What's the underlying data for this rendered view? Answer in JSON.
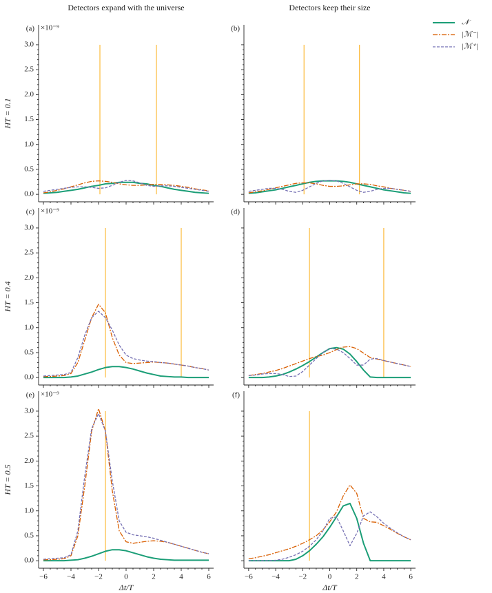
{
  "chart_data": [
    {
      "type": "line",
      "panel_label": "(a)",
      "title": "Detectors expand with the universe",
      "ylabel": "HT = 0.1",
      "y_offset_label": "×10⁻⁹",
      "x": [
        -6,
        -5.5,
        -5,
        -4.5,
        -4,
        -3.5,
        -3,
        -2.5,
        -2,
        -1.5,
        -1,
        -0.5,
        0,
        0.5,
        1,
        1.5,
        2,
        2.5,
        3,
        3.5,
        4,
        4.5,
        5,
        5.5,
        6
      ],
      "series": [
        {
          "name": "𝒩",
          "color": "#1b9e77",
          "values": [
            0.02,
            0.03,
            0.04,
            0.06,
            0.08,
            0.1,
            0.13,
            0.16,
            0.18,
            0.21,
            0.22,
            0.24,
            0.24,
            0.24,
            0.22,
            0.21,
            0.18,
            0.16,
            0.13,
            0.1,
            0.08,
            0.06,
            0.04,
            0.03,
            0.02
          ]
        },
        {
          "name": "|ℳ⁻|",
          "color": "#d95f02",
          "values": [
            0.03,
            0.05,
            0.08,
            0.11,
            0.15,
            0.19,
            0.23,
            0.26,
            0.27,
            0.26,
            0.24,
            0.21,
            0.19,
            0.18,
            0.18,
            0.19,
            0.2,
            0.2,
            0.19,
            0.18,
            0.16,
            0.14,
            0.11,
            0.09,
            0.07
          ]
        },
        {
          "name": "|ℳ⁺|",
          "color": "#7570b3",
          "values": [
            0.06,
            0.08,
            0.1,
            0.12,
            0.14,
            0.15,
            0.15,
            0.14,
            0.12,
            0.13,
            0.18,
            0.24,
            0.28,
            0.27,
            0.23,
            0.18,
            0.16,
            0.17,
            0.17,
            0.16,
            0.14,
            0.12,
            0.1,
            0.08,
            0.06
          ]
        }
      ],
      "vlines": [
        -1.9,
        2.2
      ],
      "vline_color": "#fcbf49",
      "xlim": [
        -6.35,
        6.35
      ],
      "ylim": [
        -0.15,
        3.4
      ],
      "xticks": [
        -6,
        -4,
        -2,
        0,
        2,
        4,
        6
      ],
      "yticks": [
        {
          "value": 0,
          "label": "0.0"
        },
        {
          "value": 0.5,
          "label": "0.5"
        },
        {
          "value": 1,
          "label": "1.0"
        },
        {
          "value": 1.5,
          "label": "1.5"
        },
        {
          "value": 2,
          "label": "2.0"
        },
        {
          "value": 2.5,
          "label": "2.5"
        },
        {
          "value": 3,
          "label": "3.0"
        }
      ]
    },
    {
      "type": "line",
      "panel_label": "(b)",
      "title": "Detectors keep their size",
      "x": [
        -6,
        -5.5,
        -5,
        -4.5,
        -4,
        -3.5,
        -3,
        -2.5,
        -2,
        -1.5,
        -1,
        -0.5,
        0,
        0.5,
        1,
        1.5,
        2,
        2.5,
        3,
        3.5,
        4,
        4.5,
        5,
        5.5,
        6
      ],
      "series": [
        {
          "values": [
            0.02,
            0.03,
            0.05,
            0.07,
            0.09,
            0.12,
            0.15,
            0.18,
            0.21,
            0.24,
            0.26,
            0.27,
            0.27,
            0.27,
            0.26,
            0.24,
            0.21,
            0.18,
            0.15,
            0.12,
            0.09,
            0.07,
            0.05,
            0.03,
            0.02
          ]
        },
        {
          "values": [
            0.03,
            0.05,
            0.07,
            0.1,
            0.13,
            0.16,
            0.19,
            0.22,
            0.23,
            0.23,
            0.21,
            0.18,
            0.16,
            0.16,
            0.17,
            0.19,
            0.21,
            0.21,
            0.2,
            0.17,
            0.15,
            0.12,
            0.1,
            0.08,
            0.06
          ]
        },
        {
          "values": [
            0.06,
            0.08,
            0.1,
            0.12,
            0.12,
            0.1,
            0.06,
            0.04,
            0.08,
            0.15,
            0.22,
            0.27,
            0.28,
            0.27,
            0.22,
            0.15,
            0.08,
            0.04,
            0.06,
            0.1,
            0.12,
            0.12,
            0.1,
            0.08,
            0.06
          ]
        }
      ],
      "vlines": [
        -1.9,
        2.2
      ],
      "vline_color": "#fcbf49",
      "xlim": [
        -6.35,
        6.35
      ],
      "ylim": [
        -0.15,
        3.4
      ],
      "xticks": [
        -6,
        -4,
        -2,
        0,
        2,
        4,
        6
      ],
      "yticks": [
        0,
        0.5,
        1,
        1.5,
        2,
        2.5,
        3
      ]
    },
    {
      "type": "line",
      "panel_label": "(c)",
      "ylabel": "HT = 0.4",
      "y_offset_label": "×10⁻⁹",
      "x": [
        -6,
        -5.5,
        -5,
        -4.5,
        -4,
        -3.5,
        -3,
        -2.5,
        -2,
        -1.5,
        -1,
        -0.5,
        0,
        0.5,
        1,
        1.5,
        2,
        2.5,
        3,
        3.5,
        4,
        4.5,
        5,
        5.5,
        6
      ],
      "series": [
        {
          "values": [
            0,
            0,
            0,
            0,
            0.01,
            0.03,
            0.07,
            0.11,
            0.16,
            0.2,
            0.22,
            0.22,
            0.2,
            0.17,
            0.13,
            0.09,
            0.06,
            0.03,
            0.02,
            0.01,
            0.01,
            0,
            0,
            0,
            0
          ]
        },
        {
          "values": [
            0.02,
            0.02,
            0.03,
            0.04,
            0.08,
            0.3,
            0.75,
            1.2,
            1.47,
            1.3,
            0.8,
            0.45,
            0.3,
            0.28,
            0.29,
            0.3,
            0.31,
            0.3,
            0.29,
            0.27,
            0.25,
            0.23,
            0.2,
            0.18,
            0.15
          ]
        },
        {
          "values": [
            0.03,
            0.04,
            0.05,
            0.06,
            0.1,
            0.4,
            0.85,
            1.2,
            1.33,
            1.2,
            0.95,
            0.65,
            0.45,
            0.38,
            0.35,
            0.33,
            0.32,
            0.3,
            0.29,
            0.27,
            0.25,
            0.23,
            0.2,
            0.18,
            0.15
          ]
        }
      ],
      "vlines": [
        -1.5,
        4
      ],
      "vline_color": "#fcbf49",
      "xlim": [
        -6.35,
        6.35
      ],
      "ylim": [
        -0.15,
        3.4
      ],
      "xticks": [
        -6,
        -4,
        -2,
        0,
        2,
        4,
        6
      ],
      "yticks": [
        {
          "value": 0,
          "label": "0.0"
        },
        {
          "value": 0.5,
          "label": "0.5"
        },
        {
          "value": 1,
          "label": "1.0"
        },
        {
          "value": 1.5,
          "label": "1.5"
        },
        {
          "value": 2,
          "label": "2.0"
        },
        {
          "value": 2.5,
          "label": "2.5"
        },
        {
          "value": 3,
          "label": "3.0"
        }
      ]
    },
    {
      "type": "line",
      "panel_label": "(d)",
      "x": [
        -6,
        -5.5,
        -5,
        -4.5,
        -4,
        -3.5,
        -3,
        -2.5,
        -2,
        -1.5,
        -1,
        -0.5,
        0,
        0.5,
        1,
        1.5,
        2,
        2.5,
        3,
        3.5,
        4,
        4.5,
        5,
        5.5,
        6
      ],
      "series": [
        {
          "values": [
            0,
            0,
            0,
            0.01,
            0.03,
            0.06,
            0.11,
            0.17,
            0.24,
            0.32,
            0.41,
            0.5,
            0.58,
            0.6,
            0.57,
            0.47,
            0.32,
            0.15,
            0.01,
            0,
            0,
            0,
            0,
            0,
            0
          ]
        },
        {
          "values": [
            0.04,
            0.06,
            0.08,
            0.11,
            0.14,
            0.18,
            0.23,
            0.28,
            0.33,
            0.38,
            0.42,
            0.45,
            0.5,
            0.56,
            0.61,
            0.62,
            0.58,
            0.49,
            0.4,
            0.37,
            0.34,
            0.31,
            0.28,
            0.25,
            0.22
          ]
        },
        {
          "values": [
            0.04,
            0.05,
            0.07,
            0.08,
            0.08,
            0.06,
            0.02,
            0.03,
            0.12,
            0.25,
            0.38,
            0.5,
            0.58,
            0.57,
            0.5,
            0.38,
            0.25,
            0.25,
            0.37,
            0.38,
            0.34,
            0.31,
            0.28,
            0.25,
            0.22
          ]
        }
      ],
      "vlines": [
        -1.5,
        4
      ],
      "vline_color": "#fcbf49",
      "xlim": [
        -6.35,
        6.35
      ],
      "ylim": [
        -0.15,
        3.4
      ],
      "xticks": [
        -6,
        -4,
        -2,
        0,
        2,
        4,
        6
      ],
      "yticks": [
        0,
        0.5,
        1,
        1.5,
        2,
        2.5,
        3
      ]
    },
    {
      "type": "line",
      "panel_label": "(e)",
      "ylabel": "HT = 0.5",
      "y_offset_label": "×10⁻⁹",
      "xlabel": "Δt/T",
      "x": [
        -6,
        -5.5,
        -5,
        -4.5,
        -4,
        -3.5,
        -3,
        -2.5,
        -2,
        -1.5,
        -1,
        -0.5,
        0,
        0.5,
        1,
        1.5,
        2,
        2.5,
        3,
        3.5,
        4,
        4.5,
        5,
        5.5,
        6
      ],
      "series": [
        {
          "values": [
            0,
            0,
            0,
            0,
            0.01,
            0.02,
            0.05,
            0.09,
            0.14,
            0.19,
            0.22,
            0.22,
            0.2,
            0.16,
            0.12,
            0.08,
            0.05,
            0.03,
            0.02,
            0.01,
            0.01,
            0.01,
            0.01,
            0.01,
            0.01
          ]
        },
        {
          "values": [
            0.02,
            0.02,
            0.03,
            0.04,
            0.1,
            0.5,
            1.5,
            2.6,
            3.05,
            2.6,
            1.4,
            0.6,
            0.38,
            0.35,
            0.37,
            0.39,
            0.4,
            0.39,
            0.37,
            0.33,
            0.29,
            0.25,
            0.21,
            0.17,
            0.14
          ]
        },
        {
          "values": [
            0.03,
            0.04,
            0.05,
            0.06,
            0.12,
            0.6,
            1.7,
            2.65,
            2.95,
            2.6,
            1.6,
            0.8,
            0.57,
            0.52,
            0.5,
            0.48,
            0.45,
            0.41,
            0.37,
            0.33,
            0.29,
            0.25,
            0.21,
            0.17,
            0.14
          ]
        }
      ],
      "vlines": [
        -1.5
      ],
      "vline_color": "#fcbf49",
      "xlim": [
        -6.35,
        6.35
      ],
      "ylim": [
        -0.15,
        3.4
      ],
      "xticks": [
        {
          "value": -6,
          "label": "−6"
        },
        {
          "value": -4,
          "label": "−4"
        },
        {
          "value": -2,
          "label": "−2"
        },
        0,
        2,
        4,
        6
      ],
      "yticks": [
        {
          "value": 0,
          "label": "0.0"
        },
        {
          "value": 0.5,
          "label": "0.5"
        },
        {
          "value": 1,
          "label": "1.0"
        },
        {
          "value": 1.5,
          "label": "1.5"
        },
        {
          "value": 2,
          "label": "2.0"
        },
        {
          "value": 2.5,
          "label": "2.5"
        },
        {
          "value": 3,
          "label": "3.0"
        }
      ]
    },
    {
      "type": "line",
      "panel_label": "(f)",
      "xlabel": "Δt/T",
      "x": [
        -6,
        -5.5,
        -5,
        -4.5,
        -4,
        -3.5,
        -3,
        -2.5,
        -2,
        -1.5,
        -1,
        -0.5,
        0,
        0.5,
        1,
        1.5,
        2,
        2.5,
        3,
        3.5,
        4,
        4.5,
        5,
        5.5,
        6
      ],
      "series": [
        {
          "values": [
            0,
            0,
            0,
            0,
            0,
            0,
            0,
            0.03,
            0.1,
            0.2,
            0.33,
            0.48,
            0.67,
            0.88,
            1.1,
            1.15,
            0.85,
            0.35,
            0,
            0,
            0,
            0,
            0,
            0,
            0
          ]
        },
        {
          "values": [
            0.04,
            0.06,
            0.09,
            0.12,
            0.16,
            0.2,
            0.24,
            0.29,
            0.35,
            0.42,
            0.5,
            0.62,
            0.78,
            0.98,
            1.3,
            1.52,
            1.35,
            0.85,
            0.78,
            0.77,
            0.7,
            0.63,
            0.55,
            0.48,
            0.42
          ]
        },
        {
          "values": [
            0,
            0,
            0,
            0,
            0.01,
            0.03,
            0.07,
            0.12,
            0.19,
            0.29,
            0.42,
            0.6,
            0.85,
            0.88,
            0.6,
            0.3,
            0.55,
            0.9,
            0.98,
            0.88,
            0.75,
            0.65,
            0.56,
            0.48,
            0.42
          ]
        }
      ],
      "vlines": [
        -1.5
      ],
      "vline_color": "#fcbf49",
      "xlim": [
        -6.35,
        6.35
      ],
      "ylim": [
        -0.15,
        3.4
      ],
      "xticks": [
        {
          "value": -6,
          "label": "−6"
        },
        {
          "value": -4,
          "label": "−4"
        },
        {
          "value": -2,
          "label": "−2"
        },
        0,
        2,
        4,
        6
      ],
      "yticks": [
        0,
        0.5,
        1,
        1.5,
        2,
        2.5,
        3
      ]
    }
  ]
}
